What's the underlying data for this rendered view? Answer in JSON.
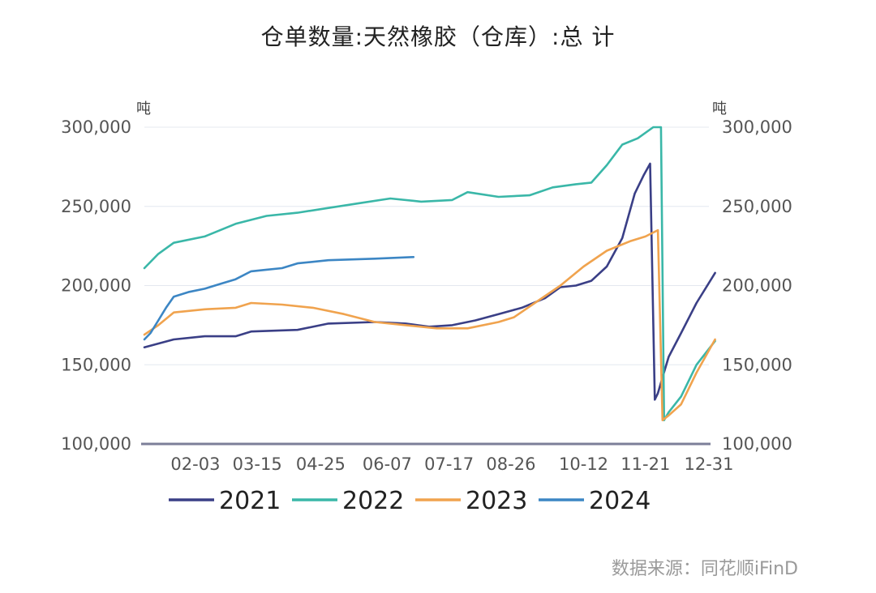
{
  "title": "仓单数量:天然橡胶（仓库）:总 计",
  "source": "数据来源：同花顺iFinD",
  "chart_data": {
    "type": "line",
    "title": "仓单数量:天然橡胶（仓库）:总 计",
    "ylabel_left": "吨",
    "ylabel_right": "吨",
    "ylim": [
      100000,
      300000
    ],
    "yticks": [
      100000,
      150000,
      200000,
      250000,
      300000
    ],
    "ytick_labels": [
      "100,000",
      "150,000",
      "200,000",
      "250,000",
      "300,000"
    ],
    "xlim": [
      1,
      366
    ],
    "xticks": [
      34,
      74,
      115,
      158,
      198,
      238,
      285,
      325,
      366
    ],
    "xtick_labels": [
      "02-03",
      "03-15",
      "04-25",
      "06-07",
      "07-17",
      "08-26",
      "10-12",
      "11-21",
      "12-31"
    ],
    "grid": true,
    "legend_position": "bottom",
    "series": [
      {
        "name": "2021",
        "color": "#3a3f86",
        "x": [
          1,
          20,
          40,
          60,
          70,
          100,
          120,
          150,
          170,
          185,
          200,
          215,
          230,
          245,
          260,
          270,
          280,
          290,
          300,
          310,
          318,
          324,
          328,
          331,
          333,
          336,
          340,
          348,
          358,
          370
        ],
        "y": [
          161000,
          166000,
          168000,
          168000,
          171000,
          172000,
          176000,
          177000,
          176000,
          174000,
          175000,
          178000,
          182000,
          186000,
          192000,
          199000,
          200000,
          203000,
          212000,
          230000,
          258000,
          270000,
          277000,
          128000,
          132000,
          142000,
          155000,
          170000,
          189000,
          208000
        ]
      },
      {
        "name": "2022",
        "color": "#3ab7a8",
        "x": [
          1,
          10,
          20,
          40,
          60,
          80,
          100,
          120,
          140,
          160,
          180,
          200,
          210,
          230,
          250,
          265,
          280,
          290,
          300,
          310,
          320,
          330,
          335,
          337,
          340,
          348,
          358,
          370
        ],
        "y": [
          211000,
          220000,
          227000,
          231000,
          239000,
          244000,
          246000,
          249000,
          252000,
          255000,
          253000,
          254000,
          259000,
          256000,
          257000,
          262000,
          264000,
          265000,
          276000,
          289000,
          293000,
          300000,
          300000,
          115000,
          120000,
          130000,
          150000,
          165000
        ]
      },
      {
        "name": "2023",
        "color": "#f0a34e",
        "x": [
          1,
          10,
          20,
          40,
          60,
          70,
          90,
          110,
          130,
          150,
          170,
          190,
          210,
          230,
          240,
          255,
          270,
          285,
          300,
          315,
          325,
          333,
          336,
          340,
          348,
          358,
          370
        ],
        "y": [
          169000,
          175000,
          183000,
          185000,
          186000,
          189000,
          188000,
          186000,
          182000,
          177000,
          175000,
          173000,
          173000,
          177000,
          180000,
          190000,
          200000,
          212000,
          222000,
          228000,
          231000,
          235000,
          115000,
          118000,
          125000,
          145000,
          166000
        ]
      },
      {
        "name": "2024",
        "color": "#3c86c4",
        "x": [
          1,
          5,
          10,
          15,
          20,
          30,
          40,
          50,
          60,
          70,
          80,
          90,
          100,
          120,
          150,
          175
        ],
        "y": [
          166000,
          170000,
          178000,
          186000,
          193000,
          196000,
          198000,
          201000,
          204000,
          209000,
          210000,
          211000,
          214000,
          216000,
          217000,
          218000
        ]
      }
    ]
  }
}
